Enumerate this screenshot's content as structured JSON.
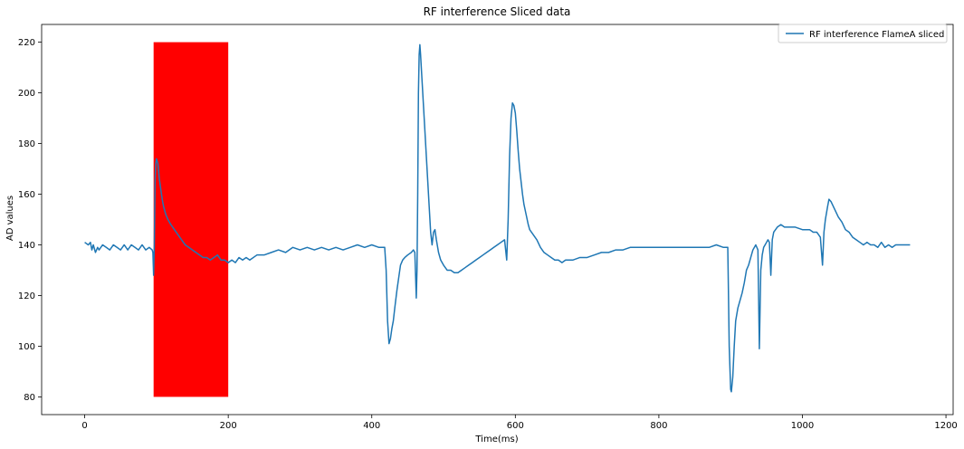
{
  "chart_data": {
    "type": "line",
    "title": "RF interference Sliced data",
    "xlabel": "Time(ms)",
    "ylabel": "AD values",
    "xlim": [
      -60,
      1210
    ],
    "ylim": [
      73,
      227
    ],
    "x_ticks": [
      0,
      200,
      400,
      600,
      800,
      1000,
      1200
    ],
    "y_ticks": [
      80,
      100,
      120,
      140,
      160,
      180,
      200,
      220
    ],
    "grid": false,
    "legend_position": "top-right",
    "highlight_region": {
      "x_start": 96,
      "x_end": 200,
      "y_start": 80,
      "y_end": 220,
      "color": "#ff0000"
    },
    "series": [
      {
        "name": "RF interference FlameA sliced",
        "color": "#1f77b4",
        "points": [
          [
            0,
            141
          ],
          [
            5,
            140
          ],
          [
            8,
            141
          ],
          [
            10,
            138
          ],
          [
            12,
            140
          ],
          [
            15,
            137
          ],
          [
            18,
            139
          ],
          [
            20,
            138
          ],
          [
            25,
            140
          ],
          [
            30,
            139
          ],
          [
            35,
            138
          ],
          [
            40,
            140
          ],
          [
            45,
            139
          ],
          [
            50,
            138
          ],
          [
            55,
            140
          ],
          [
            60,
            138
          ],
          [
            65,
            140
          ],
          [
            70,
            139
          ],
          [
            75,
            138
          ],
          [
            80,
            140
          ],
          [
            85,
            138
          ],
          [
            90,
            139
          ],
          [
            94,
            138
          ],
          [
            95,
            137
          ],
          [
            96,
            128
          ],
          [
            97,
            140
          ],
          [
            98,
            165
          ],
          [
            99,
            172
          ],
          [
            100,
            174
          ],
          [
            102,
            172
          ],
          [
            104,
            166
          ],
          [
            106,
            162
          ],
          [
            108,
            158
          ],
          [
            110,
            155
          ],
          [
            113,
            152
          ],
          [
            116,
            150
          ],
          [
            120,
            148
          ],
          [
            125,
            146
          ],
          [
            130,
            144
          ],
          [
            135,
            142
          ],
          [
            140,
            140
          ],
          [
            145,
            139
          ],
          [
            150,
            138
          ],
          [
            155,
            137
          ],
          [
            160,
            136
          ],
          [
            165,
            135
          ],
          [
            170,
            135
          ],
          [
            175,
            134
          ],
          [
            180,
            135
          ],
          [
            185,
            136
          ],
          [
            190,
            134
          ],
          [
            195,
            134
          ],
          [
            200,
            133
          ],
          [
            205,
            134
          ],
          [
            210,
            133
          ],
          [
            215,
            135
          ],
          [
            220,
            134
          ],
          [
            225,
            135
          ],
          [
            230,
            134
          ],
          [
            240,
            136
          ],
          [
            250,
            136
          ],
          [
            260,
            137
          ],
          [
            270,
            138
          ],
          [
            280,
            137
          ],
          [
            290,
            139
          ],
          [
            300,
            138
          ],
          [
            310,
            139
          ],
          [
            320,
            138
          ],
          [
            330,
            139
          ],
          [
            340,
            138
          ],
          [
            350,
            139
          ],
          [
            360,
            138
          ],
          [
            370,
            139
          ],
          [
            380,
            140
          ],
          [
            390,
            139
          ],
          [
            400,
            140
          ],
          [
            410,
            139
          ],
          [
            418,
            139
          ],
          [
            420,
            130
          ],
          [
            422,
            110
          ],
          [
            424,
            101
          ],
          [
            426,
            103
          ],
          [
            428,
            107
          ],
          [
            430,
            110
          ],
          [
            432,
            115
          ],
          [
            435,
            122
          ],
          [
            438,
            128
          ],
          [
            440,
            132
          ],
          [
            443,
            134
          ],
          [
            446,
            135
          ],
          [
            450,
            136
          ],
          [
            455,
            137
          ],
          [
            458,
            138
          ],
          [
            460,
            137
          ],
          [
            462,
            119
          ],
          [
            463,
            130
          ],
          [
            464,
            160
          ],
          [
            465,
            200
          ],
          [
            466,
            215
          ],
          [
            467,
            219
          ],
          [
            468,
            215
          ],
          [
            470,
            205
          ],
          [
            472,
            195
          ],
          [
            474,
            185
          ],
          [
            476,
            175
          ],
          [
            478,
            165
          ],
          [
            480,
            155
          ],
          [
            482,
            145
          ],
          [
            484,
            140
          ],
          [
            486,
            145
          ],
          [
            488,
            146
          ],
          [
            490,
            142
          ],
          [
            493,
            137
          ],
          [
            496,
            134
          ],
          [
            500,
            132
          ],
          [
            505,
            130
          ],
          [
            510,
            130
          ],
          [
            515,
            129
          ],
          [
            520,
            129
          ],
          [
            525,
            130
          ],
          [
            530,
            131
          ],
          [
            535,
            132
          ],
          [
            540,
            133
          ],
          [
            545,
            134
          ],
          [
            550,
            135
          ],
          [
            555,
            136
          ],
          [
            560,
            137
          ],
          [
            565,
            138
          ],
          [
            570,
            139
          ],
          [
            575,
            140
          ],
          [
            580,
            141
          ],
          [
            585,
            142
          ],
          [
            588,
            134
          ],
          [
            590,
            150
          ],
          [
            592,
            175
          ],
          [
            594,
            190
          ],
          [
            596,
            196
          ],
          [
            598,
            195
          ],
          [
            600,
            192
          ],
          [
            602,
            185
          ],
          [
            604,
            177
          ],
          [
            606,
            170
          ],
          [
            608,
            165
          ],
          [
            610,
            160
          ],
          [
            612,
            156
          ],
          [
            615,
            152
          ],
          [
            618,
            148
          ],
          [
            620,
            146
          ],
          [
            625,
            144
          ],
          [
            630,
            142
          ],
          [
            635,
            139
          ],
          [
            640,
            137
          ],
          [
            645,
            136
          ],
          [
            650,
            135
          ],
          [
            655,
            134
          ],
          [
            660,
            134
          ],
          [
            665,
            133
          ],
          [
            670,
            134
          ],
          [
            680,
            134
          ],
          [
            690,
            135
          ],
          [
            700,
            135
          ],
          [
            710,
            136
          ],
          [
            720,
            137
          ],
          [
            730,
            137
          ],
          [
            740,
            138
          ],
          [
            750,
            138
          ],
          [
            760,
            139
          ],
          [
            770,
            139
          ],
          [
            780,
            139
          ],
          [
            790,
            139
          ],
          [
            800,
            139
          ],
          [
            810,
            139
          ],
          [
            820,
            139
          ],
          [
            830,
            139
          ],
          [
            840,
            139
          ],
          [
            850,
            139
          ],
          [
            860,
            139
          ],
          [
            870,
            139
          ],
          [
            880,
            140
          ],
          [
            890,
            139
          ],
          [
            896,
            139
          ],
          [
            897,
            120
          ],
          [
            898,
            100
          ],
          [
            900,
            83
          ],
          [
            901,
            82
          ],
          [
            903,
            88
          ],
          [
            905,
            100
          ],
          [
            907,
            110
          ],
          [
            910,
            115
          ],
          [
            913,
            118
          ],
          [
            916,
            121
          ],
          [
            919,
            125
          ],
          [
            922,
            130
          ],
          [
            925,
            132
          ],
          [
            928,
            135
          ],
          [
            931,
            138
          ],
          [
            935,
            140
          ],
          [
            938,
            138
          ],
          [
            940,
            99
          ],
          [
            942,
            130
          ],
          [
            944,
            136
          ],
          [
            946,
            139
          ],
          [
            948,
            140
          ],
          [
            950,
            141
          ],
          [
            952,
            142
          ],
          [
            954,
            141
          ],
          [
            956,
            128
          ],
          [
            958,
            142
          ],
          [
            960,
            145
          ],
          [
            965,
            147
          ],
          [
            970,
            148
          ],
          [
            975,
            147
          ],
          [
            980,
            147
          ],
          [
            990,
            147
          ],
          [
            1000,
            146
          ],
          [
            1010,
            146
          ],
          [
            1015,
            145
          ],
          [
            1020,
            145
          ],
          [
            1025,
            143
          ],
          [
            1028,
            132
          ],
          [
            1030,
            145
          ],
          [
            1032,
            150
          ],
          [
            1035,
            155
          ],
          [
            1037,
            158
          ],
          [
            1040,
            157
          ],
          [
            1045,
            154
          ],
          [
            1050,
            151
          ],
          [
            1055,
            149
          ],
          [
            1060,
            146
          ],
          [
            1065,
            145
          ],
          [
            1070,
            143
          ],
          [
            1075,
            142
          ],
          [
            1080,
            141
          ],
          [
            1085,
            140
          ],
          [
            1090,
            141
          ],
          [
            1095,
            140
          ],
          [
            1100,
            140
          ],
          [
            1105,
            139
          ],
          [
            1110,
            141
          ],
          [
            1115,
            139
          ],
          [
            1120,
            140
          ],
          [
            1125,
            139
          ],
          [
            1130,
            140
          ],
          [
            1135,
            140
          ],
          [
            1140,
            140
          ],
          [
            1145,
            140
          ],
          [
            1150,
            140
          ]
        ]
      }
    ]
  }
}
